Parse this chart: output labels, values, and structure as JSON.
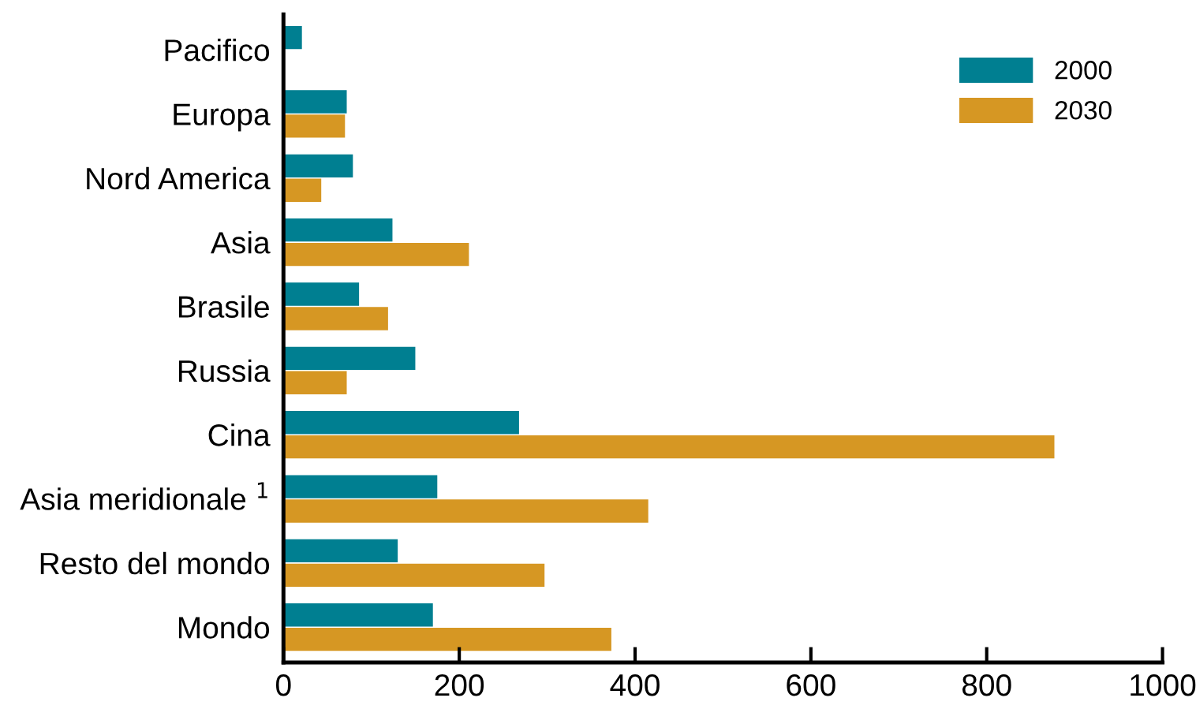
{
  "chart_data": {
    "type": "bar",
    "orientation": "horizontal",
    "categories": [
      "Pacifico",
      "Europa",
      "Nord America",
      "Asia",
      "Brasile",
      "Russia",
      "Cina",
      "Asia meridionale $^{1}$",
      "Resto del mondo",
      "Mondo"
    ],
    "series": [
      {
        "name": "2000",
        "color": "#007f91",
        "values": [
          21,
          72,
          79,
          124,
          86,
          150,
          268,
          175,
          130,
          170
        ]
      },
      {
        "name": "2030",
        "color": "#d69723",
        "values": [
          null,
          70,
          43,
          211,
          119,
          72,
          877,
          415,
          297,
          373
        ]
      }
    ],
    "xlim": [
      0,
      1000
    ],
    "xticks": [
      0,
      200,
      400,
      600,
      800,
      1000
    ],
    "grid": false,
    "legend": "top right"
  }
}
